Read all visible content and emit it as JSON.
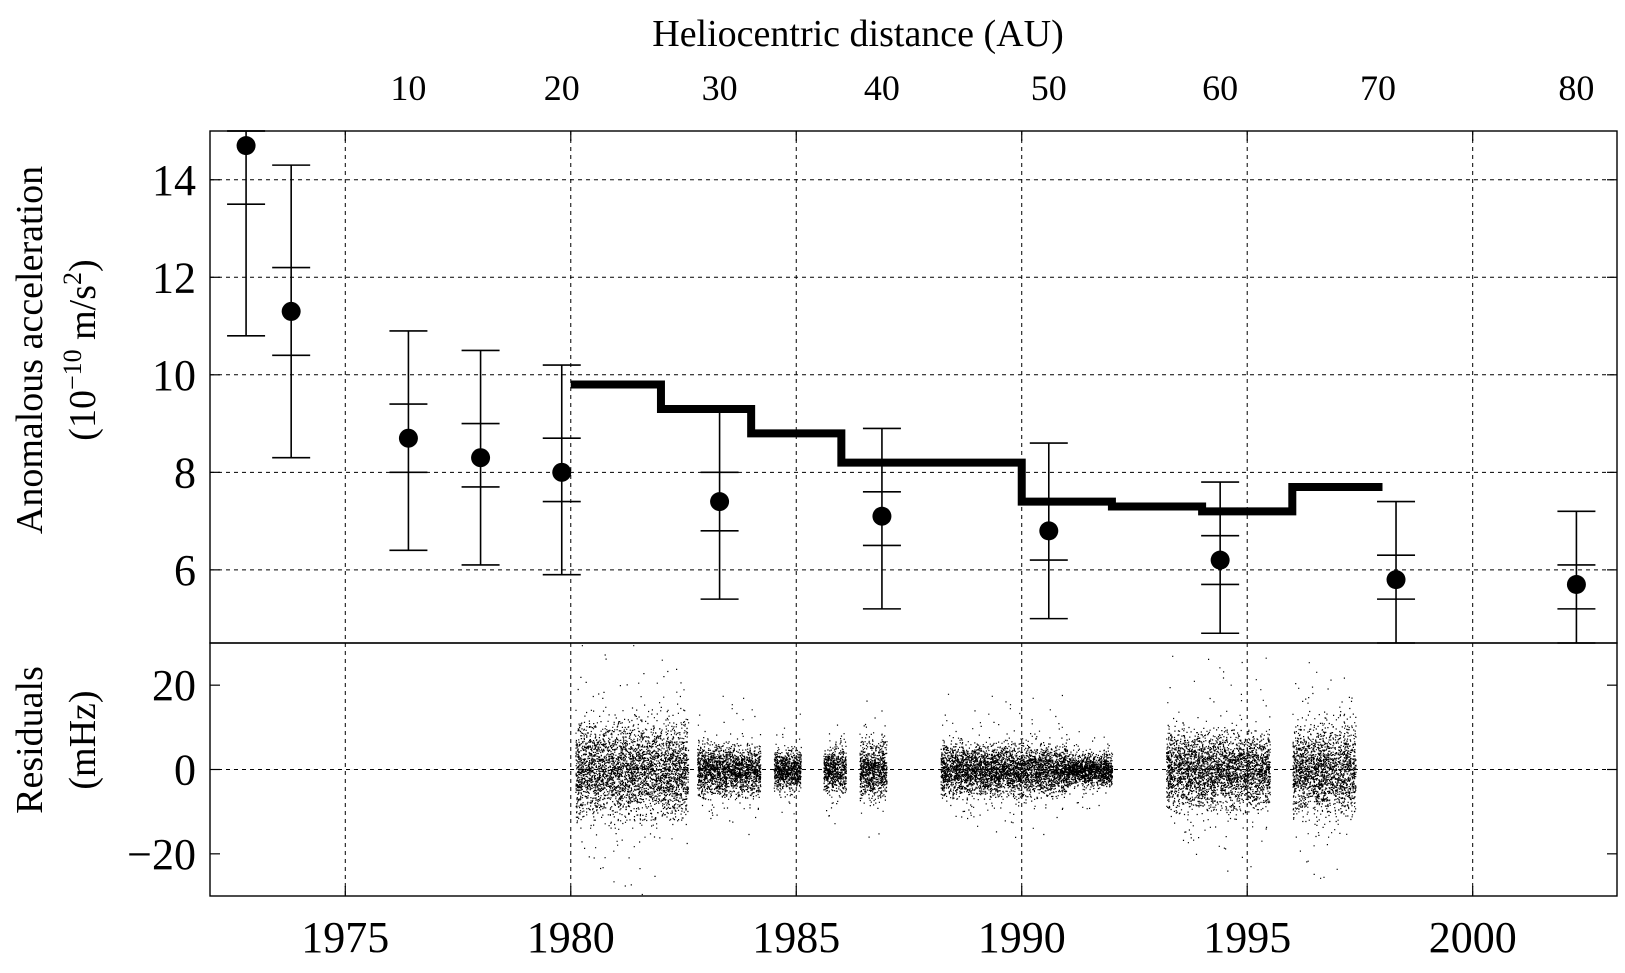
{
  "chart_data": [
    {
      "type": "scatter",
      "panel": "top",
      "ylabel_line1": "Anomalous acceleration",
      "ylabel_line2": "(10",
      "ylabel_exp": "−10",
      "ylabel_mid": " m/s",
      "ylabel_exp2": "2",
      "ylabel_end": ")",
      "top_axis_title": "Heliocentric distance (AU)",
      "top_ticks": [
        {
          "label": "10",
          "year": 1976.4
        },
        {
          "label": "20",
          "year": 1979.8
        },
        {
          "label": "30",
          "year": 1983.3
        },
        {
          "label": "40",
          "year": 1986.9
        },
        {
          "label": "50",
          "year": 1990.6
        },
        {
          "label": "60",
          "year": 1994.4
        },
        {
          "label": "70",
          "year": 1997.9
        },
        {
          "label": "80",
          "year": 2002.3
        }
      ],
      "xlim": [
        1972,
        2003.2
      ],
      "ylim": [
        4.5,
        15
      ],
      "y_ticks": [
        "6",
        "8",
        "10",
        "12",
        "14"
      ],
      "grid": true,
      "points": [
        {
          "x": 1972.8,
          "y": 14.7,
          "err_inner": [
            13.5,
            15.0
          ],
          "err_outer": [
            10.8,
            15.0
          ]
        },
        {
          "x": 1973.8,
          "y": 11.3,
          "err_inner": [
            10.4,
            12.2
          ],
          "err_outer": [
            8.3,
            14.3
          ]
        },
        {
          "x": 1976.4,
          "y": 8.7,
          "err_inner": [
            8.0,
            9.4
          ],
          "err_outer": [
            6.4,
            10.9
          ]
        },
        {
          "x": 1978.0,
          "y": 8.3,
          "err_inner": [
            7.7,
            9.0
          ],
          "err_outer": [
            6.1,
            10.5
          ]
        },
        {
          "x": 1979.8,
          "y": 8.0,
          "err_inner": [
            7.4,
            8.7
          ],
          "err_outer": [
            5.9,
            10.2
          ]
        },
        {
          "x": 1983.3,
          "y": 7.4,
          "err_inner": [
            6.8,
            8.0
          ],
          "err_outer": [
            5.4,
            9.3
          ]
        },
        {
          "x": 1986.9,
          "y": 7.1,
          "err_inner": [
            6.5,
            7.6
          ],
          "err_outer": [
            5.2,
            8.9
          ]
        },
        {
          "x": 1990.6,
          "y": 6.8,
          "err_inner": [
            6.2,
            7.4
          ],
          "err_outer": [
            5.0,
            8.6
          ]
        },
        {
          "x": 1994.4,
          "y": 6.2,
          "err_inner": [
            5.7,
            6.7
          ],
          "err_outer": [
            4.7,
            7.8
          ]
        },
        {
          "x": 1998.3,
          "y": 5.8,
          "err_inner": [
            5.4,
            6.3
          ],
          "err_outer": [
            4.5,
            7.4
          ]
        },
        {
          "x": 2002.3,
          "y": 5.7,
          "err_inner": [
            5.2,
            6.1
          ],
          "err_outer": [
            4.5,
            7.2
          ]
        }
      ],
      "step_series": [
        {
          "x0": 1980.0,
          "x1": 1982.0,
          "y": 9.8
        },
        {
          "x0": 1982.0,
          "x1": 1984.0,
          "y": 9.3
        },
        {
          "x0": 1984.0,
          "x1": 1986.0,
          "y": 8.8
        },
        {
          "x0": 1986.0,
          "x1": 1990.0,
          "y": 8.2
        },
        {
          "x0": 1990.0,
          "x1": 1992.0,
          "y": 7.4
        },
        {
          "x0": 1992.0,
          "x1": 1994.0,
          "y": 7.3
        },
        {
          "x0": 1994.0,
          "x1": 1996.0,
          "y": 7.2
        },
        {
          "x0": 1996.0,
          "x1": 1998.0,
          "y": 7.7
        }
      ]
    },
    {
      "type": "scatter",
      "panel": "bottom",
      "ylabel_line1": "Residuals",
      "ylabel_line2": "(mHz)",
      "xlim": [
        1972,
        2003.2
      ],
      "ylim": [
        -30,
        30
      ],
      "y_ticks": [
        "−20",
        "0",
        "20"
      ],
      "x_ticks": [
        "1975",
        "1980",
        "1985",
        "1990",
        "1995",
        "2000"
      ],
      "x_tick_values": [
        1975,
        1980,
        1985,
        1990,
        1995,
        2000
      ],
      "grid": true,
      "residual_segments": [
        {
          "x0": 1980.1,
          "x1": 1982.6,
          "amp": 15
        },
        {
          "x0": 1982.8,
          "x1": 1984.2,
          "amp": 8
        },
        {
          "x0": 1984.5,
          "x1": 1985.1,
          "amp": 6
        },
        {
          "x0": 1985.6,
          "x1": 1986.1,
          "amp": 7
        },
        {
          "x0": 1986.4,
          "x1": 1987.0,
          "amp": 9
        },
        {
          "x0": 1988.2,
          "x1": 1991.0,
          "amp": 8
        },
        {
          "x0": 1991.0,
          "x1": 1992.0,
          "amp": 5
        },
        {
          "x0": 1993.2,
          "x1": 1995.5,
          "amp": 12
        },
        {
          "x0": 1996.0,
          "x1": 1997.4,
          "amp": 14
        }
      ]
    }
  ]
}
